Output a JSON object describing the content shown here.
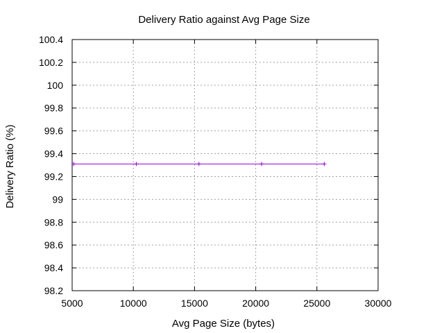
{
  "chart_data": {
    "type": "line",
    "title": "Delivery Ratio  against Avg Page Size",
    "xlabel": "Avg Page Size (bytes)",
    "ylabel": "Delivery Ratio (%)",
    "xlim": [
      5000,
      30000
    ],
    "ylim": [
      98.2,
      100.4
    ],
    "xticks": [
      "5000",
      "10000",
      "15000",
      "20000",
      "25000",
      "30000"
    ],
    "yticks": [
      "98.2",
      "98.4",
      "98.6",
      "98.8",
      "99",
      "99.2",
      "99.4",
      "99.6",
      "99.8",
      "100",
      "100.2",
      "100.4"
    ],
    "grid": true,
    "legend": "none",
    "series": [
      {
        "color": "#9400d3",
        "x": [
          5120,
          10240,
          15360,
          20480,
          25600
        ],
        "y": [
          99.31,
          99.31,
          99.31,
          99.31,
          99.31
        ]
      }
    ]
  }
}
